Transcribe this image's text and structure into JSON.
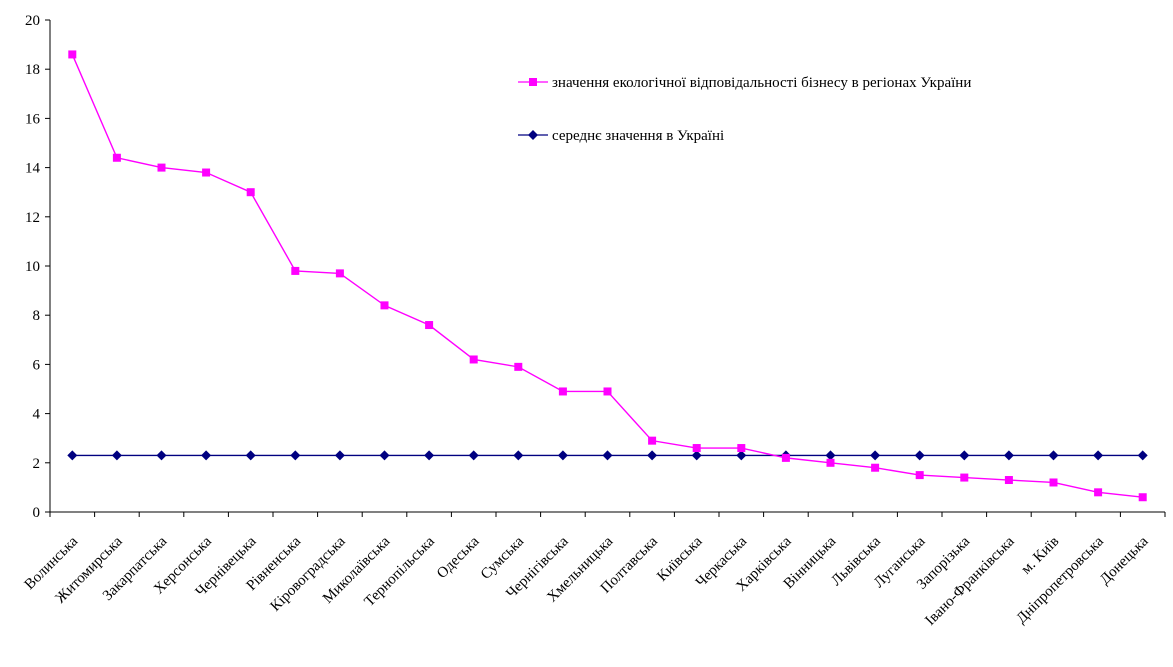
{
  "chart_data": {
    "type": "line",
    "categories": [
      "Волинська",
      "Житомирська",
      "Закарпатська",
      "Херсонська",
      "Чернівецька",
      "Рівненська",
      "Кіровоградська",
      "Миколаївська",
      "Тернопільська",
      "Одеська",
      "Сумська",
      "Чернігівська",
      "Хмельницька",
      "Полтавська",
      "Київська",
      "Черкаська",
      "Харківська",
      "Вінницька",
      "Львівська",
      "Луганська",
      "Запорізька",
      "Івано-Франківська",
      "м. Київ",
      "Дніпропетровська",
      "Донецька"
    ],
    "series": [
      {
        "name": "значення екологічної відповідальності бізнесу в регіонах України",
        "color": "#ff00ff",
        "marker": "square",
        "values": [
          18.6,
          14.4,
          14.0,
          13.8,
          13.0,
          9.8,
          9.7,
          8.4,
          7.6,
          6.2,
          5.9,
          4.9,
          4.9,
          2.9,
          2.6,
          2.6,
          2.2,
          2.0,
          1.8,
          1.5,
          1.4,
          1.3,
          1.2,
          0.8,
          0.6
        ]
      },
      {
        "name": "середнє значення в Україні",
        "color": "#000080",
        "marker": "diamond",
        "values": [
          2.3,
          2.3,
          2.3,
          2.3,
          2.3,
          2.3,
          2.3,
          2.3,
          2.3,
          2.3,
          2.3,
          2.3,
          2.3,
          2.3,
          2.3,
          2.3,
          2.3,
          2.3,
          2.3,
          2.3,
          2.3,
          2.3,
          2.3,
          2.3,
          2.3
        ]
      }
    ],
    "ylim": [
      0,
      20
    ],
    "yticks": [
      "0",
      "2",
      "4",
      "6",
      "8",
      "10",
      "12",
      "14",
      "16",
      "18",
      "20"
    ],
    "grid": false,
    "legend_position": "top-right"
  }
}
